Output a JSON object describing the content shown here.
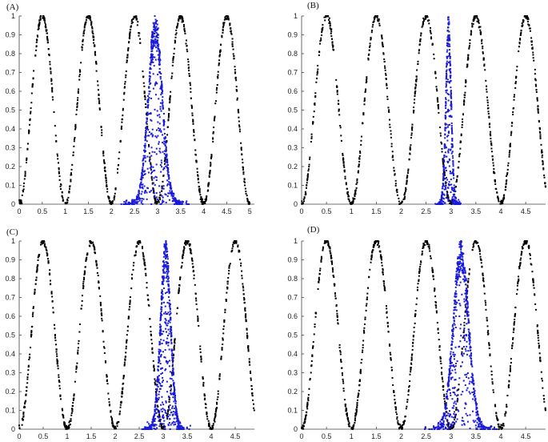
{
  "chart_data": [
    {
      "type": "scatter",
      "panel_label": "(A)",
      "xticks": [
        "0",
        "0.5",
        "1",
        "1.5",
        "2",
        "2.5",
        "3",
        "3.5",
        "4",
        "4.5",
        "5"
      ],
      "yticks": [
        "0",
        "0.1",
        "0.2",
        "0.3",
        "0.4",
        "0.5",
        "0.6",
        "0.7",
        "0.8",
        "0.9",
        "1"
      ],
      "xlim": [
        0,
        5.1
      ],
      "ylim": [
        0,
        1
      ],
      "background_curve": {
        "function": "sin^2(pi*x)",
        "peaks": [
          0.5,
          1.5,
          2.5,
          3.5,
          4.5
        ],
        "color": "#000000",
        "x_range": [
          0,
          5
        ]
      },
      "population": {
        "color": "#1a1adb",
        "center_x": 2.95,
        "spread": "wide",
        "x_range": [
          2.2,
          3.7
        ]
      },
      "grid": false
    },
    {
      "type": "scatter",
      "panel_label": "(B)",
      "xticks": [
        "0",
        "0.5",
        "1",
        "1.5",
        "2",
        "2.5",
        "3",
        "3.5",
        "4",
        "4.5"
      ],
      "yticks": [
        "0",
        "0.1",
        "0.2",
        "0.3",
        "0.4",
        "0.5",
        "0.6",
        "0.7",
        "0.8",
        "0.9",
        "1"
      ],
      "xlim": [
        0,
        4.9
      ],
      "ylim": [
        0,
        1
      ],
      "background_curve": {
        "function": "sin^2(pi*x)",
        "peaks": [
          0.5,
          1.5,
          2.5,
          3.5,
          4.5
        ],
        "color": "#000000",
        "x_range": [
          0,
          4.9
        ]
      },
      "population": {
        "color": "#1a1adb",
        "center_x": 2.95,
        "spread": "narrow",
        "x_range": [
          2.5,
          3.4
        ]
      },
      "grid": false
    },
    {
      "type": "scatter",
      "panel_label": "(C)",
      "xticks": [
        "0",
        "0.5",
        "1",
        "1.5",
        "2",
        "2.5",
        "3",
        "3.5",
        "4",
        "4.5"
      ],
      "yticks": [
        "0",
        "0.1",
        "0.2",
        "0.3",
        "0.4",
        "0.5",
        "0.6",
        "0.7",
        "0.8",
        "0.9",
        "1"
      ],
      "xlim": [
        0,
        4.9
      ],
      "ylim": [
        0,
        1
      ],
      "background_curve": {
        "function": "sin^2(pi*x)",
        "peaks": [
          0.5,
          1.5,
          2.5,
          3.5,
          4.5
        ],
        "color": "#000000",
        "x_range": [
          0,
          4.9
        ]
      },
      "population": {
        "color": "#1a1adb",
        "center_x": 3.05,
        "spread": "medium",
        "x_range": [
          2.5,
          3.7
        ]
      },
      "grid": false
    },
    {
      "type": "scatter",
      "panel_label": "(D)",
      "xticks": [
        "0",
        "0.5",
        "1",
        "1.5",
        "2",
        "2.5",
        "3",
        "3.5",
        "4",
        "4.5"
      ],
      "yticks": [
        "0",
        "0.1",
        "0.2",
        "0.3",
        "0.4",
        "0.5",
        "0.6",
        "0.7",
        "0.8",
        "0.9",
        "1"
      ],
      "xlim": [
        0,
        4.9
      ],
      "ylim": [
        0,
        1
      ],
      "background_curve": {
        "function": "sin^2(pi*x)",
        "peaks": [
          0.5,
          1.5,
          2.5,
          3.5,
          4.5
        ],
        "color": "#000000",
        "x_range": [
          0,
          4.9
        ]
      },
      "population": {
        "color": "#1a1adb",
        "center_x": 3.2,
        "spread": "wide",
        "x_range": [
          2.3,
          4.0
        ]
      },
      "grid": false
    }
  ]
}
